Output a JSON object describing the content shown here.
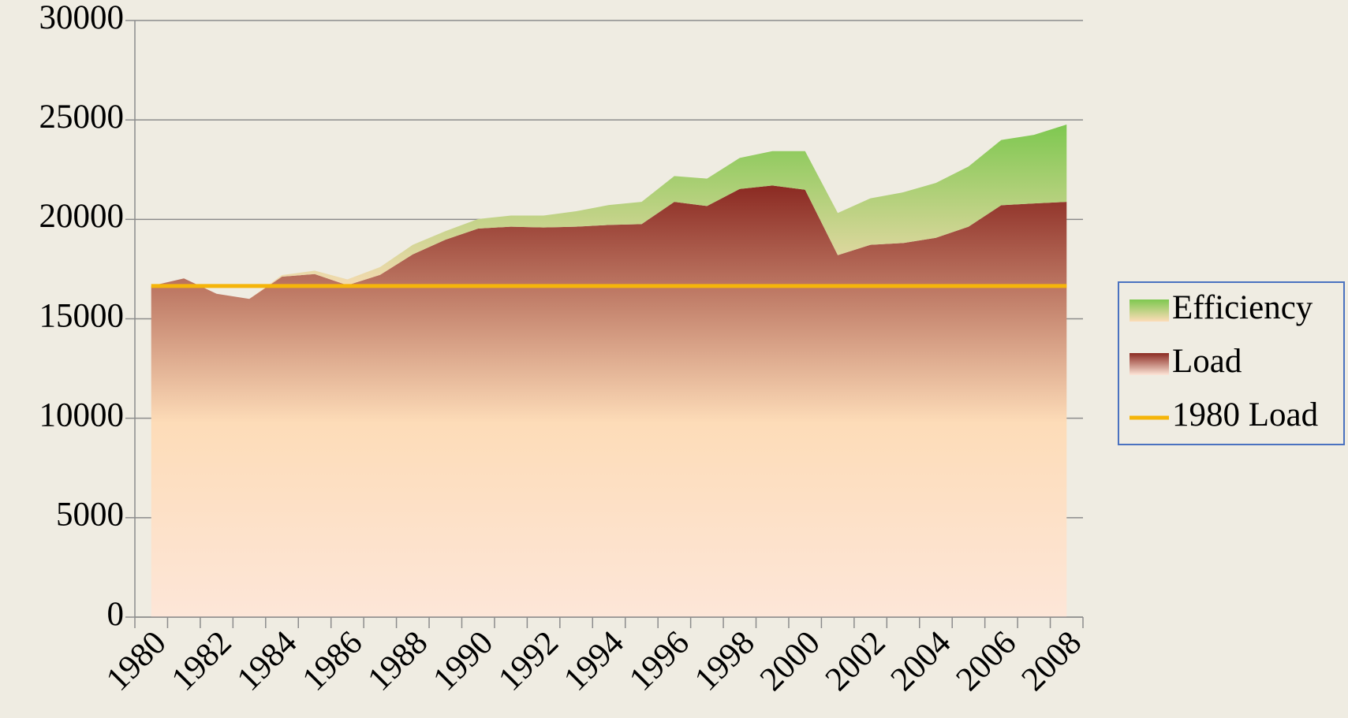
{
  "chart_data": {
    "type": "stacked_area",
    "categories": [
      "1980",
      null,
      "1982",
      null,
      "1984",
      null,
      "1986",
      null,
      "1988",
      null,
      "1990",
      null,
      "1992",
      null,
      "1994",
      null,
      "1996",
      null,
      "1998",
      null,
      "2000",
      null,
      "2002",
      null,
      "2004",
      null,
      "2006",
      null,
      "2008"
    ],
    "series": [
      {
        "name": "Load",
        "color": "#8b2a22",
        "values": [
          16650,
          17030,
          16260,
          16000,
          17120,
          17250,
          16690,
          17210,
          18240,
          18980,
          19540,
          19630,
          19590,
          19630,
          19720,
          19760,
          20880,
          20670,
          21530,
          21700,
          21490,
          18200,
          18720,
          18810,
          19070,
          19630,
          20710,
          20800,
          20880
        ]
      },
      {
        "name": "Efficiency",
        "color": "#7ec850",
        "values": [
          0,
          0,
          0,
          0,
          80,
          170,
          290,
          390,
          480,
          430,
          480,
          560,
          600,
          780,
          1000,
          1120,
          1300,
          1380,
          1560,
          1730,
          1940,
          2120,
          2340,
          2550,
          2760,
          3030,
          3280,
          3450,
          3890
        ]
      },
      {
        "name": "1980 Load",
        "color": "#f5b50a",
        "type": "line",
        "values": [
          16650,
          16650,
          16650,
          16650,
          16650,
          16650,
          16650,
          16650,
          16650,
          16650,
          16650,
          16650,
          16650,
          16650,
          16650,
          16650,
          16650,
          16650,
          16650,
          16650,
          16650,
          16650,
          16650,
          16650,
          16650,
          16650,
          16650,
          16650,
          16650
        ]
      }
    ],
    "ylim": [
      0,
      30000
    ],
    "yticks": [
      0,
      5000,
      10000,
      15000,
      20000,
      25000,
      30000
    ],
    "grid": true,
    "legend": "right"
  }
}
